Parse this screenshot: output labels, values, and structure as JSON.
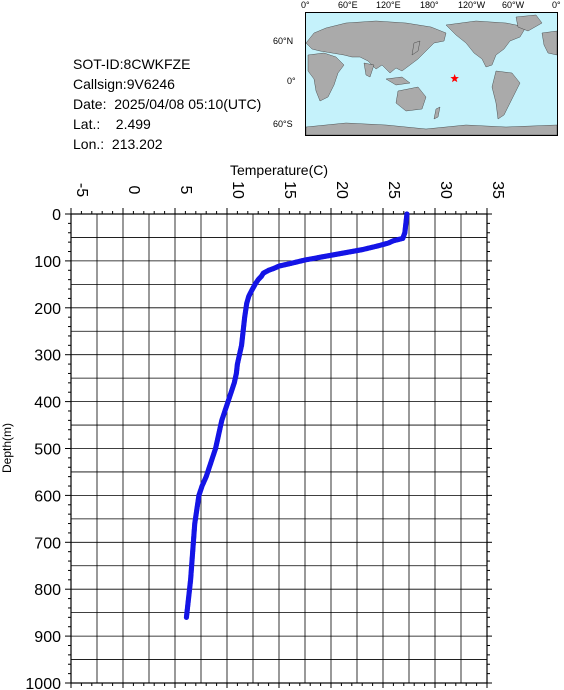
{
  "info": {
    "sot_id": "SOT-ID:8CWKFZE",
    "callsign": "Callsign:9V6246",
    "date": "Date:  2025/04/08 05:10(UTC)",
    "lat": "Lat.:    2.499",
    "lon": "Lon.:  213.202"
  },
  "map": {
    "lon_labels": [
      "0°",
      "60°E",
      "120°E",
      "180°",
      "120°W",
      "60°W",
      "0°"
    ],
    "lat_labels": [
      "60°N",
      "0°",
      "60°S"
    ],
    "marker_lat": 2.499,
    "marker_lon": 213.202,
    "ocean_color": "#c5f2fb",
    "land_color": "#aaaaaa",
    "marker_color": "#ff0000",
    "marker_icon": "star-icon"
  },
  "chart_data": {
    "type": "scatter",
    "xlabel": "Temperature(C)",
    "ylabel": "Depth(m)",
    "xlim": [
      -5,
      35
    ],
    "ylim": [
      1000,
      0
    ],
    "x_axis_position": "top",
    "x_ticks": [
      "-5",
      "0",
      "5",
      "10",
      "15",
      "20",
      "25",
      "30",
      "35"
    ],
    "y_ticks": [
      "0",
      "100",
      "200",
      "300",
      "400",
      "500",
      "600",
      "700",
      "800",
      "900",
      "1000"
    ],
    "grid": true,
    "point_color": "#1414e6",
    "series": [
      {
        "profile": [
          [
            27.3,
            0
          ],
          [
            27.2,
            20
          ],
          [
            27.1,
            40
          ],
          [
            26.9,
            52
          ],
          [
            26.0,
            57
          ],
          [
            25.5,
            62
          ],
          [
            24.5,
            68
          ],
          [
            23.0,
            76
          ],
          [
            21.0,
            84
          ],
          [
            19.0,
            92
          ],
          [
            17.5,
            98
          ],
          [
            16.0,
            106
          ],
          [
            15.0,
            111
          ],
          [
            14.5,
            116
          ],
          [
            14.0,
            120
          ],
          [
            13.5,
            126
          ],
          [
            13.3,
            133
          ],
          [
            13.0,
            140
          ],
          [
            12.7,
            150
          ],
          [
            12.4,
            162
          ],
          [
            12.1,
            175
          ],
          [
            11.9,
            190
          ],
          [
            11.8,
            205
          ],
          [
            11.7,
            220
          ],
          [
            11.6,
            240
          ],
          [
            11.5,
            260
          ],
          [
            11.4,
            280
          ],
          [
            11.2,
            300
          ],
          [
            11.0,
            320
          ],
          [
            10.9,
            340
          ],
          [
            10.7,
            360
          ],
          [
            10.4,
            380
          ],
          [
            10.1,
            400
          ],
          [
            9.8,
            420
          ],
          [
            9.5,
            440
          ],
          [
            9.3,
            460
          ],
          [
            9.1,
            480
          ],
          [
            8.9,
            500
          ],
          [
            8.6,
            520
          ],
          [
            8.3,
            540
          ],
          [
            8.0,
            560
          ],
          [
            7.6,
            580
          ],
          [
            7.3,
            600
          ],
          [
            7.1,
            630
          ],
          [
            6.9,
            660
          ],
          [
            6.8,
            690
          ],
          [
            6.7,
            720
          ],
          [
            6.6,
            750
          ],
          [
            6.5,
            780
          ],
          [
            6.4,
            800
          ],
          [
            6.3,
            820
          ],
          [
            6.2,
            840
          ],
          [
            6.1,
            860
          ]
        ]
      }
    ]
  }
}
